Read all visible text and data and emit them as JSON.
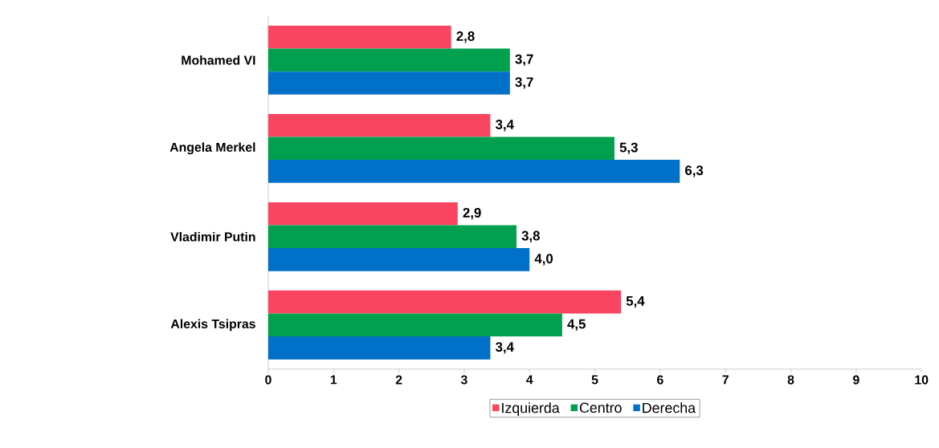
{
  "chart_data": {
    "type": "bar",
    "orientation": "horizontal",
    "categories": [
      "Mohamed VI",
      "Angela Merkel",
      "Vladimir Putin",
      "Alexis Tsipras"
    ],
    "series": [
      {
        "name": "Izquierda",
        "color": "#f9455f",
        "values": [
          2.8,
          3.4,
          2.9,
          5.4
        ],
        "value_labels": [
          "2,8",
          "3,4",
          "2,9",
          "5,4"
        ]
      },
      {
        "name": "Centro",
        "color": "#00a04e",
        "values": [
          3.7,
          5.3,
          3.8,
          4.5
        ],
        "value_labels": [
          "3,7",
          "5,3",
          "3,8",
          "4,5"
        ]
      },
      {
        "name": "Derecha",
        "color": "#0070c8",
        "values": [
          3.7,
          6.3,
          4.0,
          3.4
        ],
        "value_labels": [
          "3,7",
          "6,3",
          "4,0",
          "3,4"
        ]
      }
    ],
    "xlim": [
      0,
      10
    ],
    "xticks": [
      0,
      1,
      2,
      3,
      4,
      5,
      6,
      7,
      8,
      9,
      10
    ],
    "grid": false,
    "legend": "bottom"
  }
}
